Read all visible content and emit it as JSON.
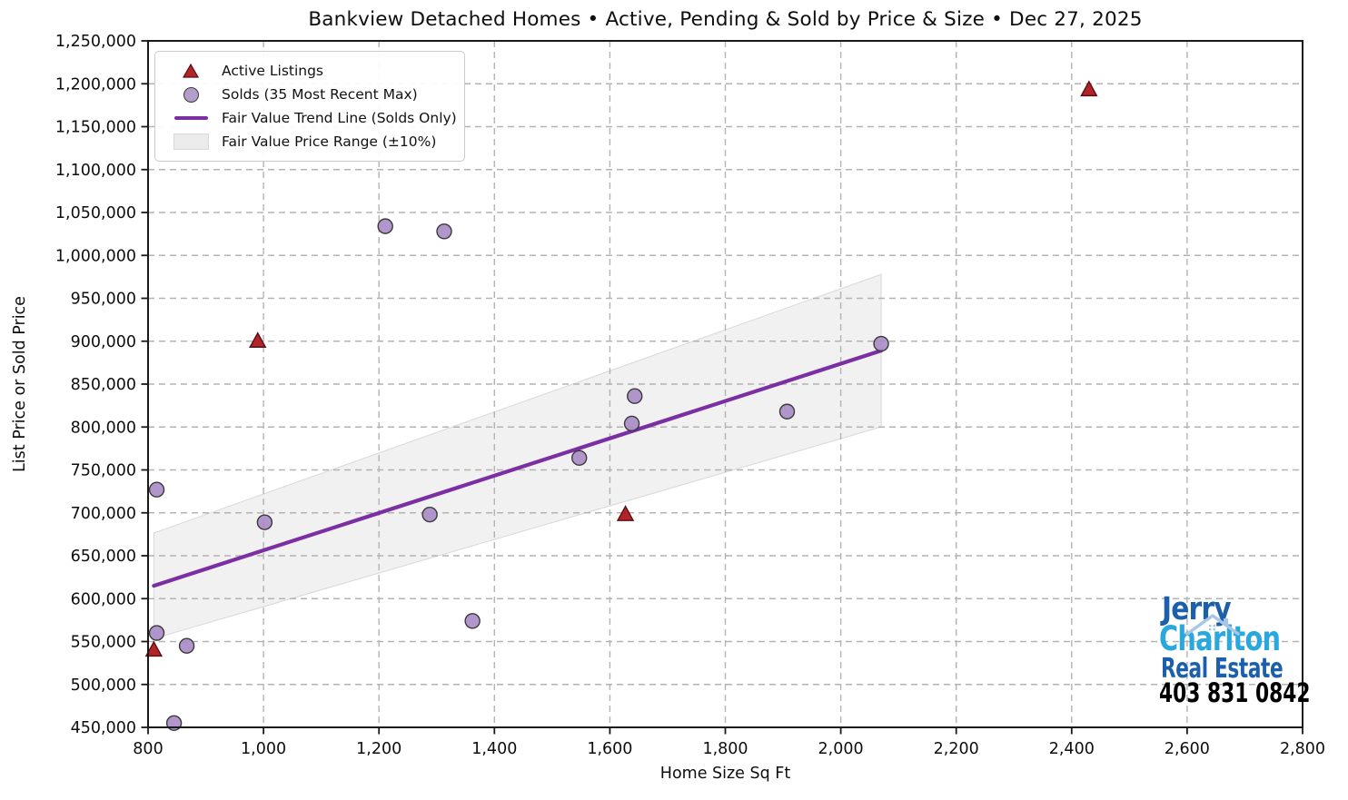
{
  "title": "Bankview Detached Homes • Active, Pending & Sold by Price & Size • Dec 27, 2025",
  "chart_data": {
    "type": "scatter",
    "title": "Bankview Detached Homes • Active, Pending & Sold by Price & Size • Dec 27, 2025",
    "xlabel": "Home Size Sq Ft",
    "ylabel": "List Price or Sold Price",
    "xlim": [
      800,
      2800
    ],
    "x_tick_step": 200,
    "ylim": [
      450000,
      1250000
    ],
    "y_tick_step": 50000,
    "grid": "dashed",
    "legend_position": "upper left",
    "legend": [
      "Active Listings",
      "Solds (35 Most Recent Max)",
      "Fair Value Trend Line (Solds Only)",
      "Fair Value Price Range (±10%)"
    ],
    "colors": {
      "active": "#b22428",
      "active_edge": "#5a1012",
      "sold": "#a98bc5",
      "sold_edge": "#3a3a3a",
      "trend": "#7b2fa3",
      "band": "#e8e8e8",
      "band_edge": "#d8d8d8",
      "grid": "#b3b3b3",
      "spine": "#1a1a1a"
    },
    "series": [
      {
        "name": "Active Listings",
        "type": "scatter",
        "marker": "triangle-up",
        "points": [
          [
            810,
            540000
          ],
          [
            990,
            900000
          ],
          [
            1627,
            698000
          ],
          [
            2430,
            1193000
          ]
        ]
      },
      {
        "name": "Solds (35 Most Recent Max)",
        "type": "scatter",
        "marker": "circle",
        "points": [
          [
            815,
            727000
          ],
          [
            815,
            560000
          ],
          [
            845,
            455000
          ],
          [
            867,
            545000
          ],
          [
            1002,
            689000
          ],
          [
            1211,
            1034000
          ],
          [
            1288,
            698000
          ],
          [
            1313,
            1028000
          ],
          [
            1362,
            574000
          ],
          [
            1547,
            764000
          ],
          [
            1638,
            804000
          ],
          [
            1643,
            836000
          ],
          [
            1907,
            818000
          ],
          [
            2070,
            897000
          ]
        ]
      },
      {
        "name": "Fair Value Trend Line (Solds Only)",
        "type": "line",
        "points": [
          [
            810,
            615000
          ],
          [
            2070,
            889000
          ]
        ]
      },
      {
        "name": "Fair Value Price Range (±10%)",
        "type": "band",
        "top": [
          [
            810,
            676500
          ],
          [
            2070,
            977900
          ]
        ],
        "bottom": [
          [
            810,
            553500
          ],
          [
            2070,
            800100
          ]
        ]
      }
    ]
  },
  "branding": {
    "name_line1": "Jerry",
    "name_line2": "Charlton",
    "name_line3": "Real Estate",
    "phone": "403 831 0842",
    "color_dark_blue": "#1b5fad",
    "color_light_blue": "#29a8e0",
    "color_roof": "#a9c7e4",
    "color_phone": "#000000"
  }
}
